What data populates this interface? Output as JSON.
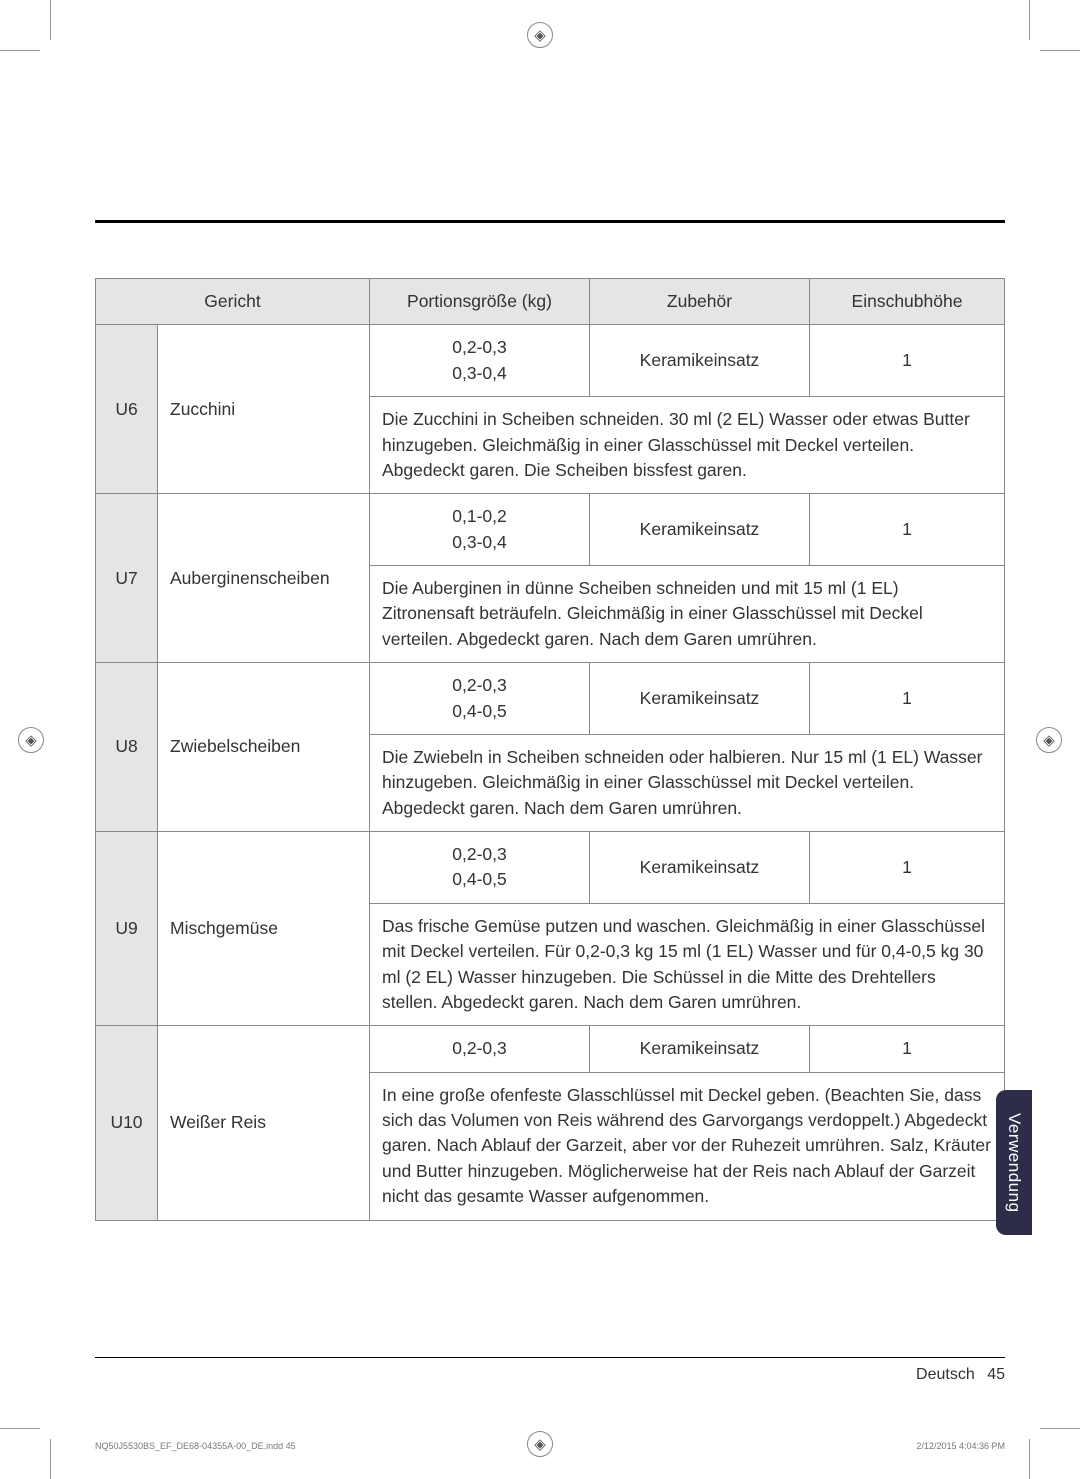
{
  "headers": {
    "gericht": "Gericht",
    "portion": "Portionsgröße (kg)",
    "zubehor": "Zubehör",
    "einschub": "Einschubhöhe"
  },
  "rows": [
    {
      "code": "U6",
      "dish": "Zucchini",
      "portion": "0,2-0,3\n0,3-0,4",
      "accessory": "Keramikeinsatz",
      "rack": "1",
      "instructions": "Die Zucchini in Scheiben schneiden. 30 ml (2 EL) Wasser oder etwas Butter hinzugeben. Gleichmäßig in einer Glasschüssel mit Deckel verteilen. Abgedeckt garen. Die Scheiben bissfest garen."
    },
    {
      "code": "U7",
      "dish": "Auberginenscheiben",
      "portion": "0,1-0,2\n0,3-0,4",
      "accessory": "Keramikeinsatz",
      "rack": "1",
      "instructions": "Die Auberginen in dünne Scheiben schneiden und mit 15 ml (1 EL) Zitronensaft beträufeln. Gleichmäßig in einer Glasschüssel mit Deckel verteilen. Abgedeckt garen. Nach dem Garen umrühren."
    },
    {
      "code": "U8",
      "dish": "Zwiebelscheiben",
      "portion": "0,2-0,3\n0,4-0,5",
      "accessory": "Keramikeinsatz",
      "rack": "1",
      "instructions": "Die Zwiebeln in Scheiben schneiden oder halbieren. Nur 15 ml (1 EL) Wasser hinzugeben. Gleichmäßig in einer Glasschüssel mit Deckel verteilen. Abgedeckt garen. Nach dem Garen umrühren."
    },
    {
      "code": "U9",
      "dish": "Mischgemüse",
      "portion": "0,2-0,3\n0,4-0,5",
      "accessory": "Keramikeinsatz",
      "rack": "1",
      "instructions": "Das frische Gemüse putzen und waschen. Gleichmäßig in einer Glasschüssel mit Deckel verteilen. Für 0,2-0,3 kg 15 ml (1 EL) Wasser und für 0,4-0,5 kg 30 ml (2 EL) Wasser hinzugeben. Die Schüssel in die Mitte des Drehtellers stellen. Abgedeckt garen. Nach dem Garen umrühren."
    },
    {
      "code": "U10",
      "dish": "Weißer Reis",
      "portion": "0,2-0,3",
      "accessory": "Keramikeinsatz",
      "rack": "1",
      "instructions": "In eine große ofenfeste Glasschlüssel mit Deckel geben. (Beachten Sie, dass sich das Volumen von Reis während des Garvorgangs verdoppelt.) Abgedeckt garen. Nach Ablauf der Garzeit, aber vor der Ruhezeit umrühren. Salz, Kräuter und Butter hinzugeben. Möglicherweise hat der Reis nach Ablauf der Garzeit nicht das gesamte Wasser aufgenommen."
    }
  ],
  "sidetab": "Verwendung",
  "footer": {
    "lang": "Deutsch",
    "page": "45"
  },
  "tiny": {
    "left": "NQ50J5530BS_EF_DE68-04355A-00_DE.indd   45",
    "right": "2/12/2015   4:04:36 PM"
  }
}
